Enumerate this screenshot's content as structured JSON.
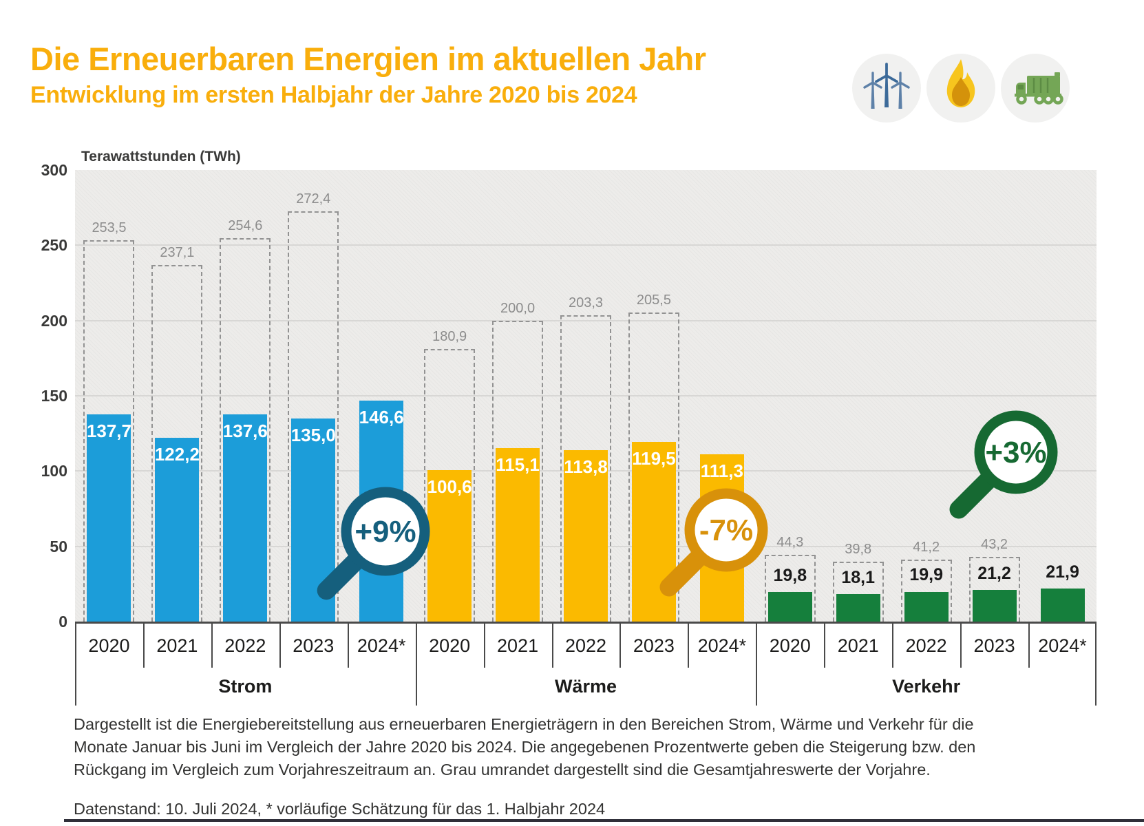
{
  "header": {
    "title": "Die Erneuerbaren Energien im aktuellen Jahr",
    "subtitle": "Entwicklung im ersten Halbjahr der Jahre 2020 bis 2024",
    "icons": [
      "wind-turbines-icon",
      "flame-icon",
      "garbage-truck-icon"
    ]
  },
  "chart_data": {
    "type": "bar",
    "title": "",
    "xlabel": "",
    "ylabel": "Terawattstunden (TWh)",
    "unit": "TWh",
    "ylim": [
      0,
      300
    ],
    "yticks": [
      0,
      50,
      100,
      150,
      200,
      250,
      300
    ],
    "grid": true,
    "categories": [
      "2020",
      "2021",
      "2022",
      "2023",
      "2024*"
    ],
    "groups": [
      {
        "label": "Strom",
        "color": "#1C9DD9",
        "badge": {
          "text": "+9%",
          "color": "#155F7D"
        },
        "halfyear_values": [
          137.7,
          122.2,
          137.6,
          135.0,
          146.6
        ],
        "fullyear_prev_values": [
          253.5,
          237.1,
          254.6,
          272.4,
          null
        ],
        "value_label_style": "inside"
      },
      {
        "label": "Wärme",
        "color": "#FBBA00",
        "badge": {
          "text": "-7%",
          "color": "#D8910A"
        },
        "halfyear_values": [
          100.6,
          115.1,
          113.8,
          119.5,
          111.3
        ],
        "fullyear_prev_values": [
          180.9,
          200.0,
          203.3,
          205.5,
          null
        ],
        "value_label_style": "inside"
      },
      {
        "label": "Verkehr",
        "color": "#157F3C",
        "badge": {
          "text": "+3%",
          "color": "#166932"
        },
        "halfyear_values": [
          19.8,
          18.1,
          19.9,
          21.2,
          21.9
        ],
        "fullyear_prev_values": [
          44.3,
          39.8,
          41.2,
          43.2,
          null
        ],
        "value_label_style": "above"
      }
    ]
  },
  "notes": {
    "paragraph": "Dargestellt ist die Energiebereitstellung aus erneuerbaren Energieträgern in den Bereichen Strom, Wärme und Verkehr für die Monate Januar bis Juni im Vergleich der Jahre 2020 bis 2024. Die angegebenen Prozentwerte geben die Steigerung bzw. den Rückgang im Vergleich zum Vorjahreszeitraum an. Grau umrandet dargestellt sind die Gesamtjahreswerte der Vorjahre.",
    "datenstand": "Datenstand: 10. Juli 2024, * vorläufige Schätzung für das 1. Halbjahr 2024"
  },
  "colors": {
    "title": "#F9AE0C",
    "strom": "#1C9DD9",
    "waerme": "#FBBA00",
    "verkehr": "#157F3C",
    "dashed_outline": "#929292",
    "plot_background": "#EDECEA",
    "text_dark": "#3A3A39"
  }
}
